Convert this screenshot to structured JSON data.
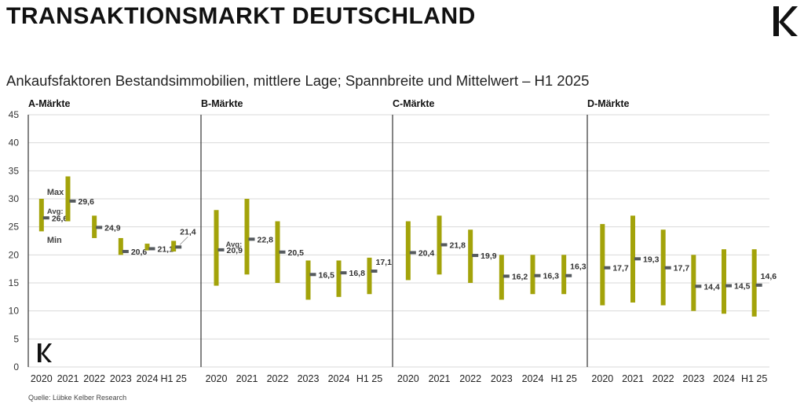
{
  "header": {
    "title": "TRANSAKTIONSMARKT DEUTSCHLAND",
    "subtitle": "Ankaufsfaktoren Bestandsimmobilien, mittlere Lage; Spannbreite und Mittelwert – H1 2025",
    "source": "Quelle: Lübke Kelber Research"
  },
  "colors": {
    "bar": "#a3a30a",
    "marker": "#555a5e",
    "grid": "#d9d9d9",
    "axis": "#333333"
  },
  "chart_data": {
    "type": "range-bar",
    "ylim": [
      0,
      45
    ],
    "yticks": [
      0,
      5,
      10,
      15,
      20,
      25,
      30,
      35,
      40,
      45
    ],
    "categories": [
      "2020",
      "2021",
      "2022",
      "2023",
      "2024",
      "H1 25"
    ],
    "annotations": {
      "max": "Max",
      "avg": "Avg:",
      "min": "Min"
    },
    "panels": [
      {
        "title": "A-Märkte",
        "min": [
          24.2,
          26.0,
          23.0,
          20.0,
          20.8,
          20.6
        ],
        "max": [
          30.0,
          34.0,
          27.0,
          23.0,
          22.0,
          22.5
        ],
        "avg": [
          26.6,
          29.6,
          24.9,
          20.6,
          21.1,
          21.4
        ],
        "labels": [
          "26,6",
          "29,6",
          "24,9",
          "20,6",
          "21,1",
          "21,4"
        ]
      },
      {
        "title": "B-Märkte",
        "min": [
          14.5,
          16.5,
          15.0,
          12.0,
          12.5,
          13.0
        ],
        "max": [
          28.0,
          30.0,
          26.0,
          19.0,
          19.0,
          19.5
        ],
        "avg": [
          20.9,
          22.8,
          20.5,
          16.5,
          16.8,
          17.1
        ],
        "labels": [
          "20,9",
          "22,8",
          "20,5",
          "16,5",
          "16,8",
          "17,1"
        ]
      },
      {
        "title": "C-Märkte",
        "min": [
          15.5,
          16.5,
          15.0,
          12.0,
          13.0,
          13.0
        ],
        "max": [
          26.0,
          27.0,
          24.5,
          20.0,
          20.0,
          20.0
        ],
        "avg": [
          20.4,
          21.8,
          19.9,
          16.2,
          16.3,
          16.3
        ],
        "labels": [
          "20,4",
          "21,8",
          "19,9",
          "16,2",
          "16,3",
          "16,3"
        ]
      },
      {
        "title": "D-Märkte",
        "min": [
          11.0,
          11.5,
          11.0,
          10.0,
          9.5,
          9.0
        ],
        "max": [
          25.5,
          27.0,
          24.5,
          20.0,
          21.0,
          21.0
        ],
        "avg": [
          17.7,
          19.3,
          17.7,
          14.4,
          14.5,
          14.6
        ],
        "labels": [
          "17,7",
          "19,3",
          "17,7",
          "14,4",
          "14,5",
          "14,6"
        ]
      }
    ]
  }
}
